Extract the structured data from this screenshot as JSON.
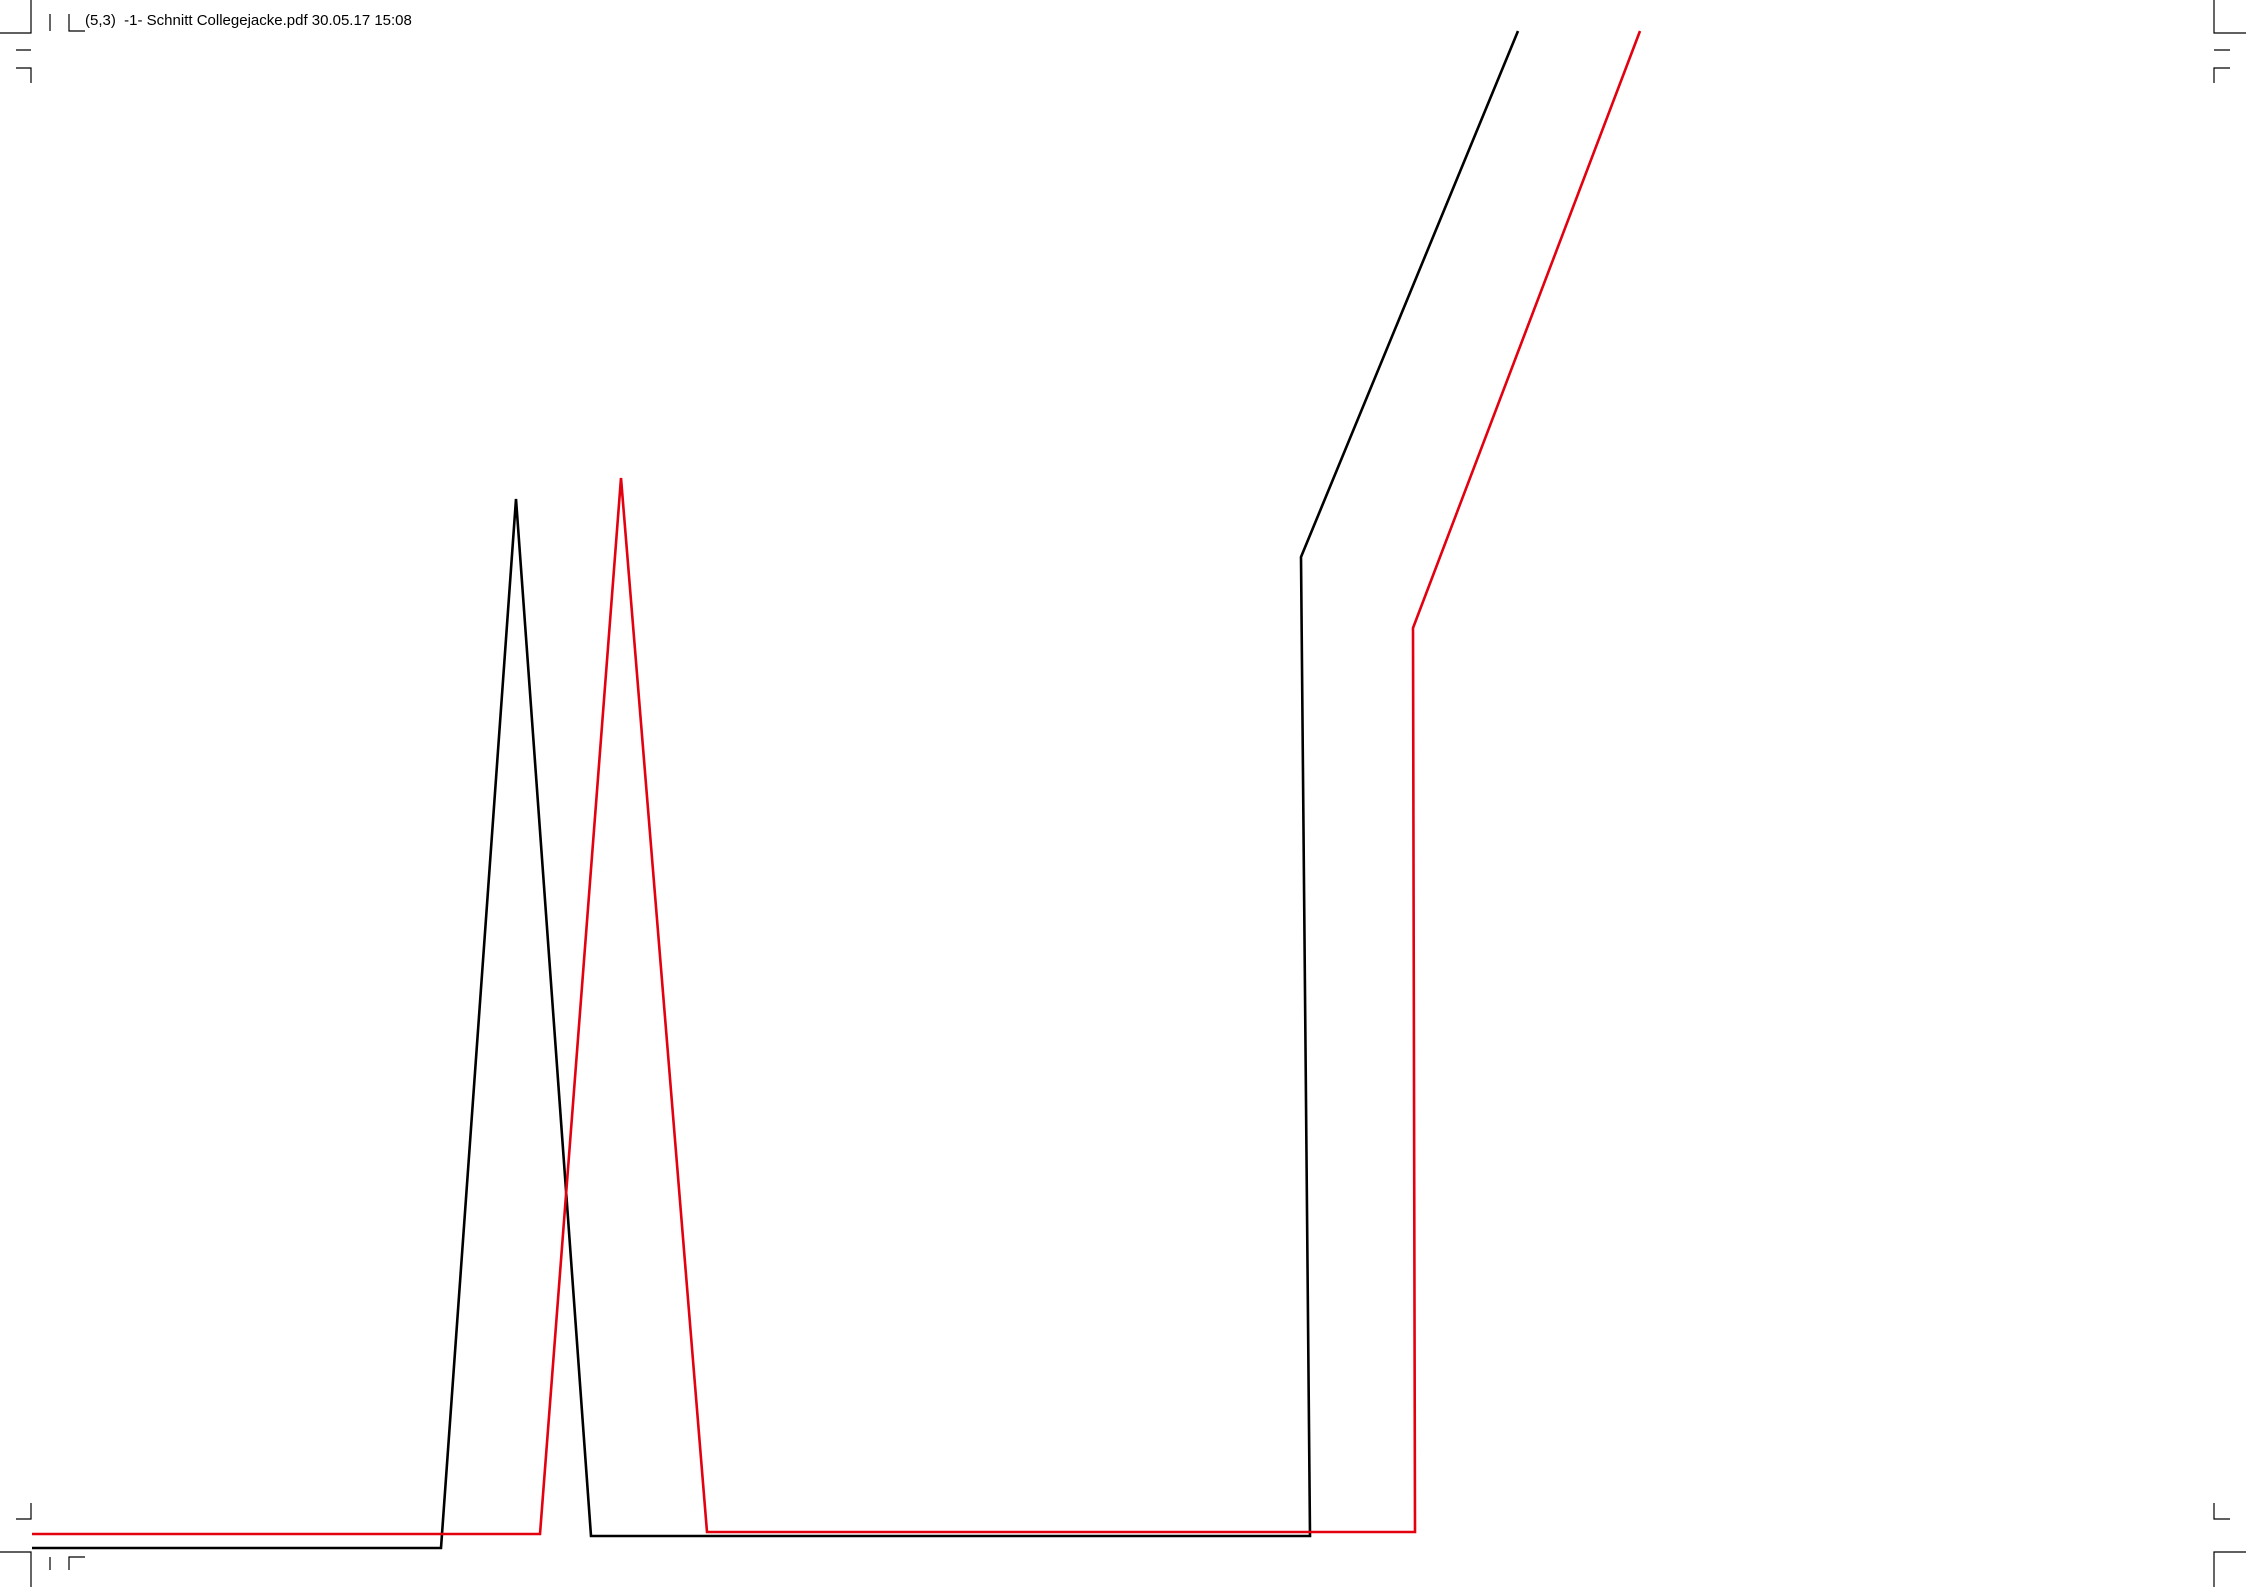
{
  "header": {
    "label": "(5,3)  -1- Schnitt Collegejacke.pdf 30.05.17 15:08"
  },
  "colors": {
    "pattern_line_black": "#000000",
    "pattern_line_red": "#e3000f",
    "crop_marks": "#000000"
  }
}
